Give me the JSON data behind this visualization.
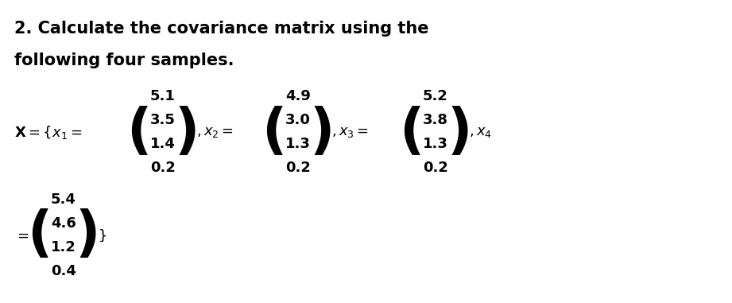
{
  "title_line1": "2. Calculate the covariance matrix using the",
  "title_line2": "following four samples.",
  "x1": [
    "5.1",
    "3.5",
    "1.4",
    "0.2"
  ],
  "x2": [
    "4.9",
    "3.0",
    "1.3",
    "0.2"
  ],
  "x3": [
    "5.2",
    "3.8",
    "1.3",
    "0.2"
  ],
  "x4": [
    "5.4",
    "4.6",
    "1.2",
    "0.4"
  ],
  "bg_color": "#ffffff",
  "text_color": "#000000",
  "font_size_title": 15,
  "font_size_math": 14
}
